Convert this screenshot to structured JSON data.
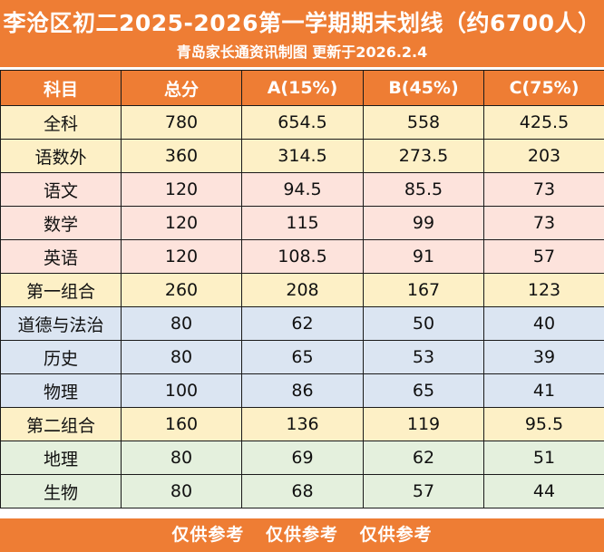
{
  "header": {
    "title": "李沧区初二2025-2026第一学期期末划线（约6700人）",
    "subtitle": "青岛家长通资讯制图 更新于2026.2.4"
  },
  "table": {
    "columns": [
      "科目",
      "总分",
      "A(15%)",
      "B(45%)",
      "C(75%)"
    ],
    "rows": [
      {
        "tone": "yellow",
        "cells": [
          "全科",
          "780",
          "654.5",
          "558",
          "425.5"
        ]
      },
      {
        "tone": "yellow",
        "cells": [
          "语数外",
          "360",
          "314.5",
          "273.5",
          "203"
        ]
      },
      {
        "tone": "pink",
        "cells": [
          "语文",
          "120",
          "94.5",
          "85.5",
          "73"
        ]
      },
      {
        "tone": "pink",
        "cells": [
          "数学",
          "120",
          "115",
          "99",
          "73"
        ]
      },
      {
        "tone": "pink",
        "cells": [
          "英语",
          "120",
          "108.5",
          "91",
          "57"
        ]
      },
      {
        "tone": "yellow",
        "cells": [
          "第一组合",
          "260",
          "208",
          "167",
          "123"
        ]
      },
      {
        "tone": "blue",
        "cells": [
          "道德与法治",
          "80",
          "62",
          "50",
          "40"
        ]
      },
      {
        "tone": "blue",
        "cells": [
          "历史",
          "80",
          "65",
          "53",
          "39"
        ]
      },
      {
        "tone": "blue",
        "cells": [
          "物理",
          "100",
          "86",
          "65",
          "41"
        ]
      },
      {
        "tone": "yellow",
        "cells": [
          "第二组合",
          "160",
          "136",
          "119",
          "95.5"
        ]
      },
      {
        "tone": "green",
        "cells": [
          "地理",
          "80",
          "69",
          "62",
          "51"
        ]
      },
      {
        "tone": "green",
        "cells": [
          "生物",
          "80",
          "68",
          "57",
          "44"
        ]
      }
    ]
  },
  "footer": {
    "notes": [
      "仅供参考",
      "仅供参考",
      "仅供参考"
    ]
  },
  "colors": {
    "accent": "#ee7d34",
    "yellow": "#fdf0c6",
    "pink": "#fde3dc",
    "blue": "#dbe5f2",
    "green": "#e4f0dd"
  }
}
